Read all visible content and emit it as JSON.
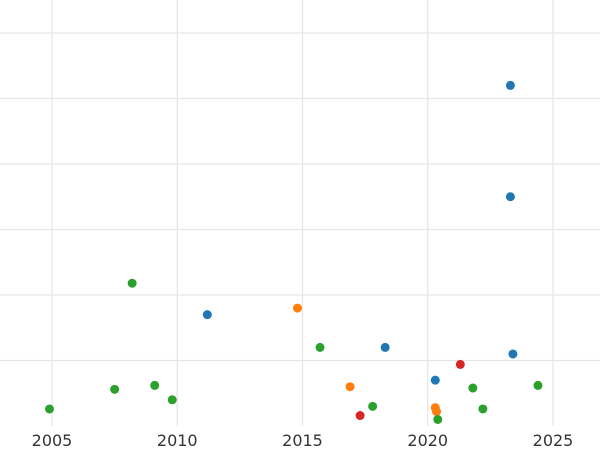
{
  "chart_data": {
    "type": "scatter",
    "title": "",
    "xlabel": "",
    "ylabel": "",
    "xlim": [
      2004.0,
      2026.0
    ],
    "ylim": [
      0,
      32
    ],
    "grid": true,
    "x_ticks": [
      2005,
      2010,
      2015,
      2020,
      2025
    ],
    "y_grid_values": [
      5,
      10,
      15,
      20,
      25,
      30
    ],
    "series": [
      {
        "color": "#1f77b4",
        "points": [
          {
            "x": 2011.2,
            "y": 8.5
          },
          {
            "x": 2018.3,
            "y": 6.0
          },
          {
            "x": 2020.3,
            "y": 3.5
          },
          {
            "x": 2023.3,
            "y": 17.5
          },
          {
            "x": 2023.3,
            "y": 26.0
          },
          {
            "x": 2023.4,
            "y": 5.5
          }
        ]
      },
      {
        "color": "#ff7f0e",
        "points": [
          {
            "x": 2014.8,
            "y": 9.0
          },
          {
            "x": 2016.9,
            "y": 3.0
          },
          {
            "x": 2020.3,
            "y": 1.4
          },
          {
            "x": 2020.35,
            "y": 1.1
          }
        ]
      },
      {
        "color": "#2ca02c",
        "points": [
          {
            "x": 2004.9,
            "y": 1.3
          },
          {
            "x": 2007.5,
            "y": 2.8
          },
          {
            "x": 2008.2,
            "y": 10.9
          },
          {
            "x": 2009.1,
            "y": 3.1
          },
          {
            "x": 2009.8,
            "y": 2.0
          },
          {
            "x": 2015.7,
            "y": 6.0
          },
          {
            "x": 2017.8,
            "y": 1.5
          },
          {
            "x": 2020.4,
            "y": 0.5
          },
          {
            "x": 2021.8,
            "y": 2.9
          },
          {
            "x": 2022.2,
            "y": 1.3
          },
          {
            "x": 2024.4,
            "y": 3.1
          }
        ]
      },
      {
        "color": "#d62728",
        "points": [
          {
            "x": 2017.3,
            "y": 0.8
          },
          {
            "x": 2021.3,
            "y": 4.7
          }
        ]
      }
    ]
  }
}
